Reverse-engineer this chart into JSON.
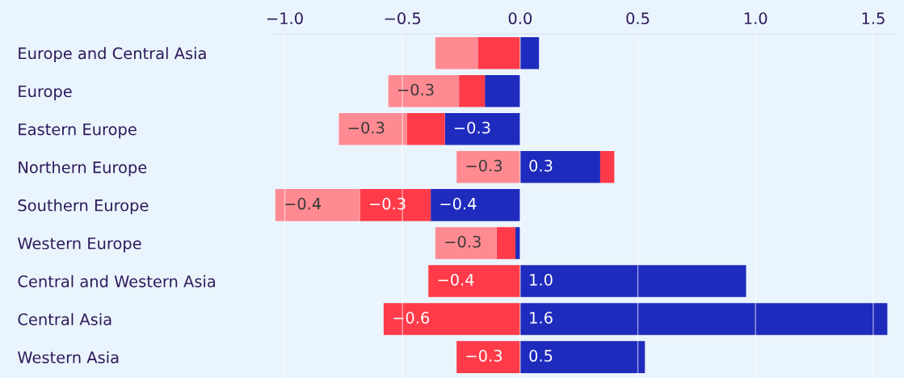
{
  "chart_data": {
    "type": "bar",
    "orientation": "horizontal",
    "stacked": true,
    "categories": [
      "Europe and Central Asia",
      "Europe",
      "Eastern Europe",
      "Northern Europe",
      "Southern Europe",
      "Western Europe",
      "Central and Western Asia",
      "Central Asia",
      "Western Asia"
    ],
    "series": [
      {
        "color": "#1f2bbd",
        "values": [
          0.08,
          -0.15,
          -0.32,
          0.34,
          -0.38,
          -0.02,
          0.96,
          1.56,
          0.53
        ],
        "value_labels": [
          null,
          null,
          "−0.3",
          "0.3",
          "−0.4",
          null,
          "1.0",
          "1.6",
          "0.5"
        ]
      },
      {
        "color": "#ff3b4a",
        "values": [
          -0.18,
          -0.11,
          -0.16,
          0.06,
          -0.3,
          -0.08,
          -0.39,
          -0.58,
          -0.27
        ],
        "value_labels": [
          null,
          null,
          null,
          null,
          "−0.3",
          null,
          "−0.4",
          "−0.6",
          "−0.3"
        ]
      },
      {
        "color": "#ff8a92",
        "values": [
          -0.18,
          -0.3,
          -0.29,
          -0.27,
          -0.36,
          -0.26,
          null,
          null,
          null
        ],
        "value_labels": [
          null,
          "−0.3",
          "−0.3",
          "−0.3",
          "−0.4",
          "−0.3",
          null,
          null,
          null
        ]
      }
    ],
    "xlim": [
      -1.05,
      1.6
    ],
    "xticks": [
      {
        "value": -1.0,
        "label": "−1.0"
      },
      {
        "value": -0.5,
        "label": "−0.5"
      },
      {
        "value": 0.0,
        "label": "0.0"
      },
      {
        "value": 0.5,
        "label": "0.5"
      },
      {
        "value": 1.0,
        "label": "1.0"
      },
      {
        "value": 1.5,
        "label": "1.5"
      }
    ],
    "grid": "x"
  }
}
